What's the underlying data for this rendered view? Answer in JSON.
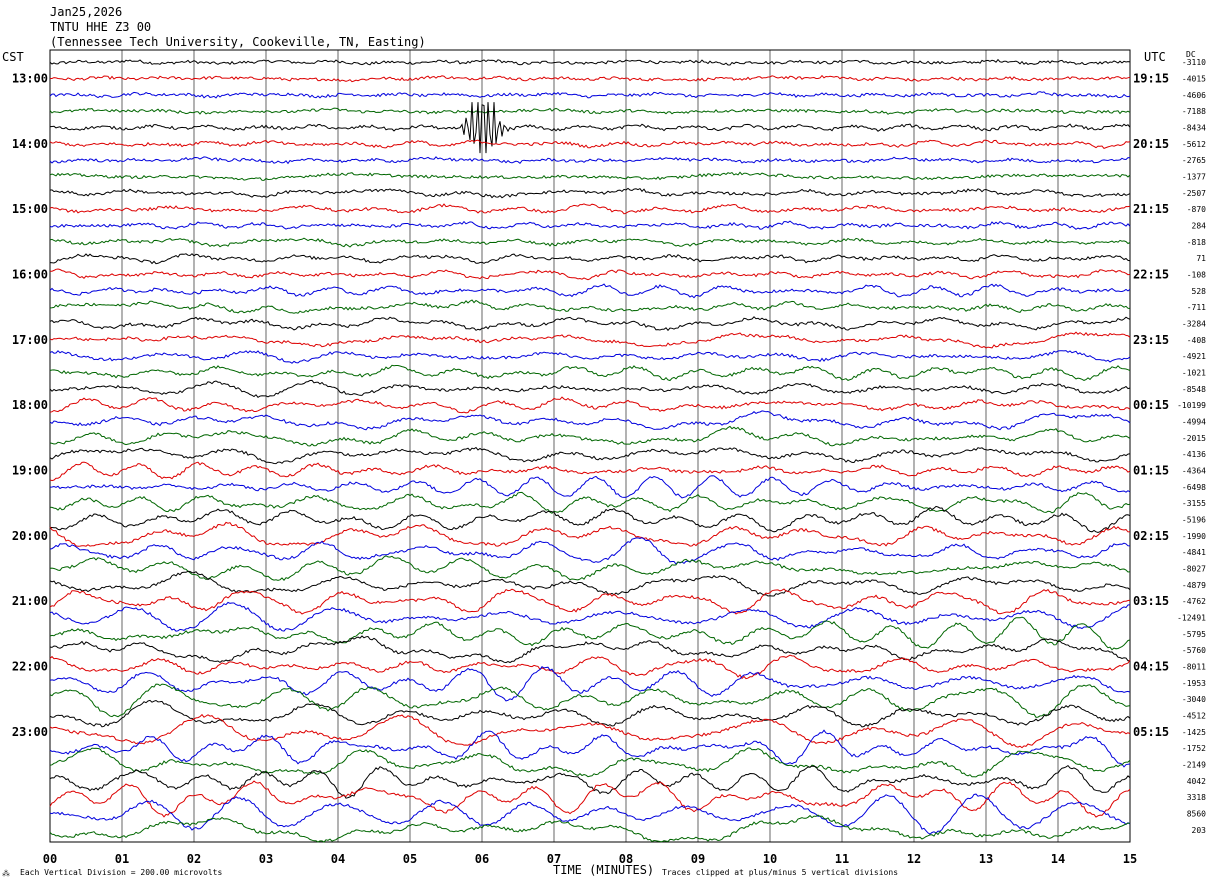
{
  "header": {
    "date": "Jan25,2026",
    "station": "TNTU HHE Z3 00",
    "location": "(Tennessee Tech University, Cookeville, TN, Easting)"
  },
  "left_zone_label": "CST",
  "right_zone_label": "UTC",
  "dc_label": "DC",
  "footer": {
    "scale_note": "Each Vertical Division =  200.00 microvolts",
    "xlabel": "TIME (MINUTES)",
    "clip_note": "Traces clipped at plus/minus 5 vertical divisions"
  },
  "colors": {
    "trace_cycle": [
      "#000000",
      "#dd0000",
      "#0000dd",
      "#006600"
    ],
    "grid": "#000000"
  },
  "chart_data": {
    "type": "line",
    "title": "TNTU HHE Z3 00",
    "xlabel": "TIME (MINUTES)",
    "xlim": [
      0,
      15
    ],
    "x_ticks": [
      "00",
      "01",
      "02",
      "03",
      "04",
      "05",
      "06",
      "07",
      "08",
      "09",
      "10",
      "11",
      "12",
      "13",
      "14",
      "15"
    ],
    "row_minutes": 15,
    "left_hour_labels": [
      "13:00",
      "14:00",
      "15:00",
      "16:00",
      "17:00",
      "18:00",
      "19:00",
      "20:00",
      "21:00",
      "22:00",
      "23:00"
    ],
    "right_hour_labels": [
      "19:15",
      "20:15",
      "21:15",
      "22:15",
      "23:15",
      "00:15",
      "01:15",
      "02:15",
      "03:15",
      "04:15",
      "05:15"
    ],
    "dc_offsets": [
      "-3110",
      "-4015",
      "-4606",
      "-7188",
      "-8434",
      "-5612",
      "-2765",
      "-1377",
      "-2507",
      "-870",
      "284",
      "-818",
      "71",
      "-108",
      "528",
      "-711",
      "-3284",
      "-408",
      "-4921",
      "-1021",
      "-8548",
      "-10199",
      "-4994",
      "-2015",
      "-4136",
      "-4364",
      "-6498",
      "-3155",
      "-5196",
      "-1990",
      "-4841",
      "-8027",
      "-4879",
      "-4762",
      "-12491",
      "-5795",
      "-5760",
      "-8011",
      "-1953",
      "-3040",
      "-4512",
      "-1425",
      "-1752",
      "-2149",
      "4042",
      "3318",
      "8560",
      "203"
    ],
    "traces_per_hour": 4,
    "first_trace_hour_offset": -3,
    "event": {
      "trace_index": 4,
      "minute": 5.9,
      "duration_minutes": 0.8,
      "peak_divisions": 6
    },
    "clip_divisions": 5
  }
}
